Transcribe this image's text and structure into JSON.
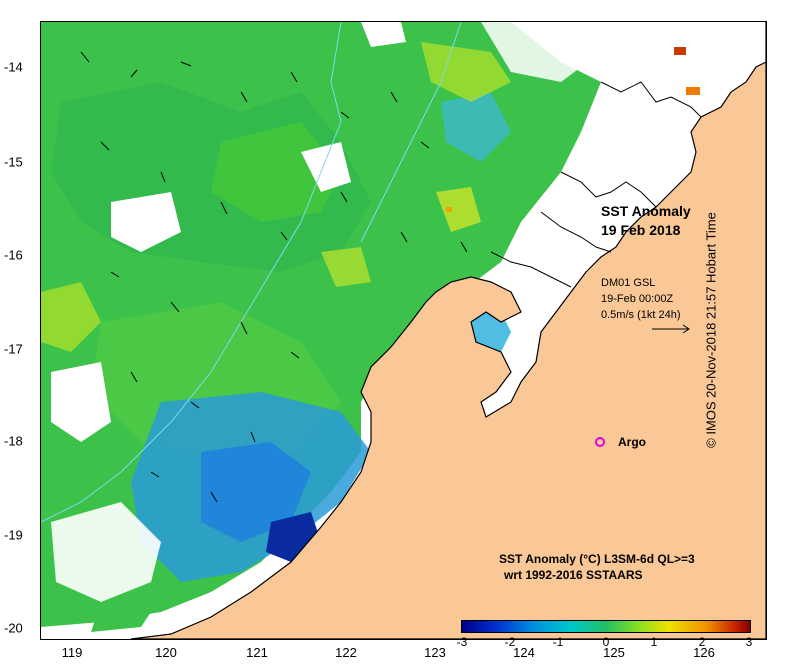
{
  "map": {
    "title_line1": "SST Anomaly",
    "title_line2": "19 Feb 2018",
    "vector_info": {
      "line1": "DM01 GSL",
      "line2": "19-Feb 00:00Z",
      "line3": "0.5m/s (1kt 24h)"
    },
    "argo_label": "Argo",
    "legend": {
      "line1": "SST Anomaly (°C) L3SM-6d QL>=3",
      "line2": "wrt 1992-2016 SSTAARS",
      "ticks": [
        "-3",
        "-2",
        "-1",
        "0",
        "1",
        "2",
        "3"
      ]
    },
    "credit": "© IMOS 20-Nov-2018 21:57 Hobart Time",
    "x_axis_labels": [
      "119",
      "120",
      "121",
      "122",
      "123",
      "124",
      "125",
      "126"
    ],
    "y_axis_labels": [
      "-14",
      "-15",
      "-16",
      "-17",
      "-18",
      "-19",
      "-20"
    ],
    "colors": {
      "land": "#fac896",
      "sea_anomaly_main": "#3cc24a",
      "sea_anomaly_cool": "#2a9bd8",
      "argo_marker": "#e000e0"
    }
  }
}
